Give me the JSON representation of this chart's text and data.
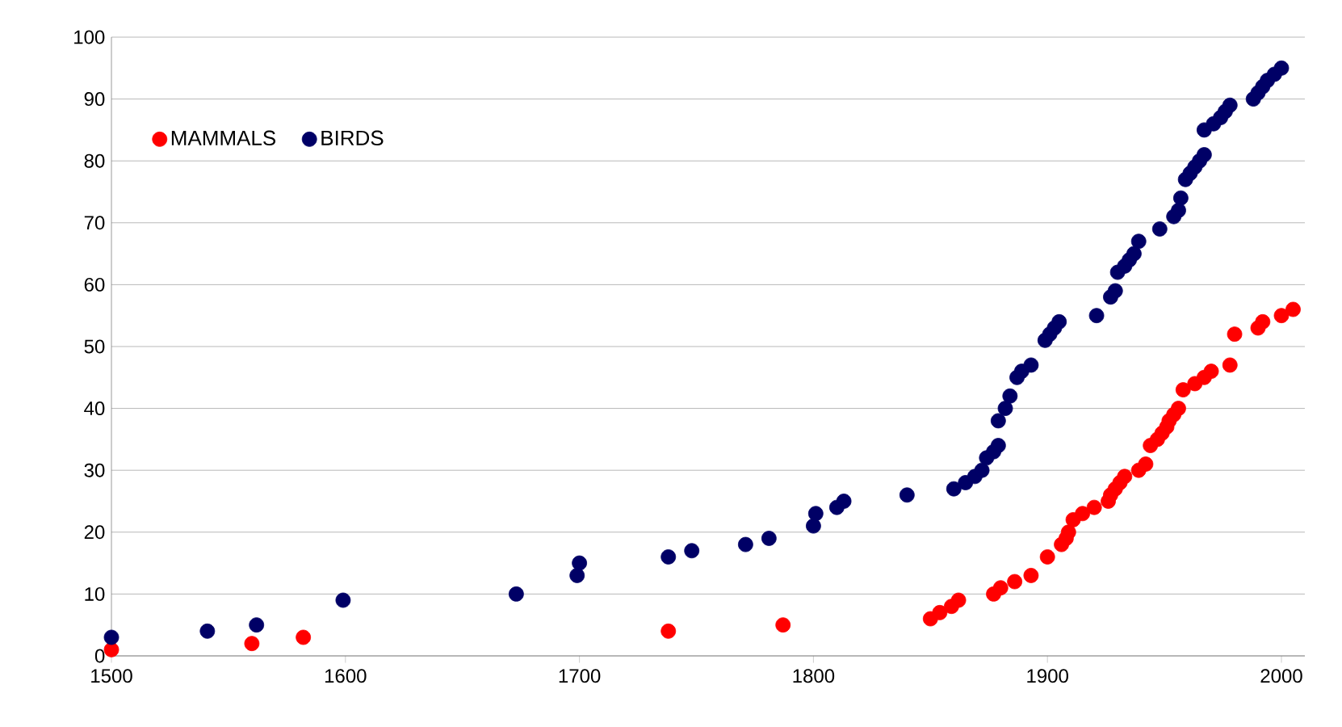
{
  "chart_data": {
    "type": "scatter",
    "grid": "y",
    "legend": "top left",
    "xlim": [
      1500,
      2010
    ],
    "ylim": [
      0,
      100
    ],
    "xticks": [
      1500,
      1600,
      1700,
      1800,
      1900,
      2000
    ],
    "yticks": [
      0,
      10,
      20,
      30,
      40,
      50,
      60,
      70,
      80,
      90,
      100
    ],
    "series": [
      {
        "name": "MAMMALS",
        "color": "#ff0000",
        "x": [
          1500,
          1560,
          1582,
          1738,
          1787,
          1850,
          1854,
          1859,
          1862,
          1877,
          1880,
          1886,
          1893,
          1900,
          1906,
          1908,
          1909,
          1911,
          1915,
          1920,
          1926,
          1927,
          1929,
          1931,
          1933,
          1939,
          1942,
          1944,
          1947,
          1949,
          1951,
          1952,
          1954,
          1956,
          1958,
          1963,
          1967,
          1970,
          1978,
          1980,
          1990,
          1992,
          2000,
          2005
        ],
        "values": [
          1,
          2,
          3,
          4,
          5,
          6,
          7,
          8,
          9,
          10,
          11,
          12,
          13,
          16,
          18,
          19,
          20,
          22,
          23,
          24,
          25,
          26,
          27,
          28,
          29,
          30,
          31,
          34,
          35,
          36,
          37,
          38,
          39,
          40,
          43,
          44,
          45,
          46,
          47,
          52,
          53,
          54,
          55,
          56
        ]
      },
      {
        "name": "BIRDS",
        "color": "#000066",
        "x": [
          1500,
          1541,
          1562,
          1599,
          1673,
          1699,
          1700,
          1738,
          1748,
          1771,
          1781,
          1800,
          1801,
          1810,
          1813,
          1840,
          1860,
          1865,
          1869,
          1872,
          1874,
          1877,
          1879,
          1879,
          1882,
          1884,
          1887,
          1889,
          1893,
          1899,
          1901,
          1903,
          1905,
          1921,
          1927,
          1929,
          1930,
          1933,
          1935,
          1937,
          1939,
          1948,
          1954,
          1956,
          1957,
          1959,
          1961,
          1963,
          1965,
          1967,
          1967,
          1971,
          1974,
          1976,
          1978,
          1988,
          1990,
          1992,
          1994,
          1997,
          2000
        ],
        "values": [
          3,
          4,
          5,
          9,
          10,
          13,
          15,
          16,
          17,
          18,
          19,
          21,
          23,
          24,
          25,
          26,
          27,
          28,
          29,
          30,
          32,
          33,
          34,
          38,
          40,
          42,
          45,
          46,
          47,
          51,
          52,
          53,
          54,
          55,
          58,
          59,
          62,
          63,
          64,
          65,
          67,
          69,
          71,
          72,
          74,
          77,
          78,
          79,
          80,
          81,
          85,
          86,
          87,
          88,
          89,
          90,
          91,
          92,
          93,
          94,
          95
        ]
      }
    ]
  }
}
